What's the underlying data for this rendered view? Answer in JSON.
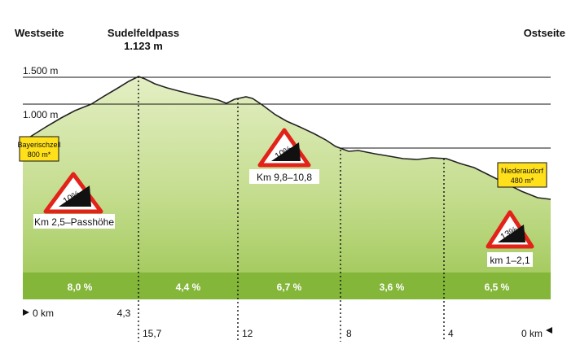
{
  "headers": {
    "west": "Westseite",
    "pass_name": "Sudelfeldpass",
    "pass_altitude": "1.123 m",
    "east": "Ostseite"
  },
  "altitude_labels": [
    "1.500 m",
    "1.000 m"
  ],
  "places": {
    "west": {
      "name": "Bayerischzell",
      "altitude": "800 m*"
    },
    "east": {
      "name": "Niederaudorf",
      "altitude": "480 m*"
    }
  },
  "gradient_signs": [
    {
      "percent": "10%",
      "caption": "Km 2,5–Passhöhe"
    },
    {
      "percent": "10%",
      "caption": "Km 9,8–10,8"
    },
    {
      "percent": "13%",
      "caption": "km 1–2,1"
    }
  ],
  "segments": [
    "8,0 %",
    "4,4 %",
    "6,7 %",
    "3,6 %",
    "6,5 %"
  ],
  "km_west": [
    "0 km",
    "4,3"
  ],
  "km_east": [
    "15,7",
    "12",
    "8",
    "4",
    "0 km"
  ],
  "colors": {
    "profile_top": "#cde49a",
    "profile_bottom": "#8dbb3e",
    "band": "#7eb135",
    "sign_red": "#e2231a",
    "label_box": "#ffe01a"
  }
}
